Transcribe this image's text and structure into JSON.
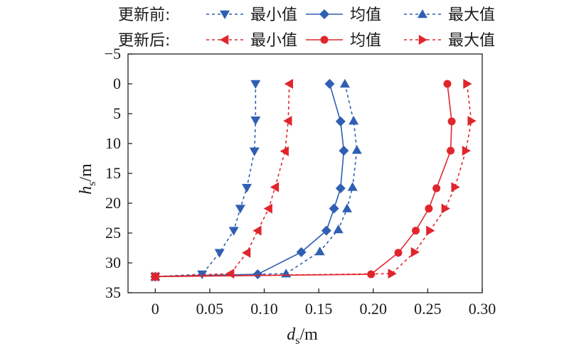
{
  "chart_data": {
    "type": "line",
    "xlabel": {
      "main": "d",
      "sub": "s",
      "unit": "/m"
    },
    "ylabel": {
      "main": "h",
      "sub": "s",
      "unit": "/m"
    },
    "xlim": [
      -0.025,
      0.3
    ],
    "ylim": [
      35,
      -5
    ],
    "y_inverted": true,
    "x_ticks": [
      0,
      0.05,
      0.1,
      0.15,
      0.2,
      0.25,
      0.3
    ],
    "x_tick_labels": [
      "0",
      "0.05",
      "0.10",
      "0.15",
      "0.20",
      "0.25",
      "0.30"
    ],
    "y_ticks": [
      -5,
      0,
      5,
      10,
      15,
      20,
      25,
      30,
      35
    ],
    "y_tick_labels": [
      "−5",
      "0",
      "5",
      "10",
      "15",
      "20",
      "25",
      "30",
      "35"
    ],
    "grid": false,
    "legend": {
      "placement": "top",
      "rows": [
        {
          "label": "更新前:",
          "entries": [
            "最小值",
            "均值",
            "最大值"
          ]
        },
        {
          "label": "更新后:",
          "entries": [
            "最小值",
            "均值",
            "最大值"
          ]
        }
      ]
    },
    "series": [
      {
        "name": "最小值",
        "group": "更新前",
        "color": "#2f5fb3",
        "marker": "triangle-down",
        "dashed": true,
        "points": [
          [
            0.092,
            0
          ],
          [
            0.092,
            6.1
          ],
          [
            0.091,
            11.3
          ],
          [
            0.084,
            17.4
          ],
          [
            0.078,
            20.9
          ],
          [
            0.072,
            24.6
          ],
          [
            0.059,
            28.3
          ],
          [
            0.043,
            31.9
          ],
          [
            0,
            32.3
          ]
        ]
      },
      {
        "name": "均值",
        "group": "更新前",
        "color": "#2f5fb3",
        "marker": "diamond",
        "dashed": false,
        "points": [
          [
            0.16,
            0
          ],
          [
            0.17,
            6.3
          ],
          [
            0.173,
            11.2
          ],
          [
            0.17,
            17.5
          ],
          [
            0.164,
            20.9
          ],
          [
            0.157,
            24.6
          ],
          [
            0.134,
            28.2
          ],
          [
            0.094,
            31.9
          ],
          [
            0,
            32.3
          ]
        ]
      },
      {
        "name": "最大值",
        "group": "更新前",
        "color": "#2f5fb3",
        "marker": "triangle-up",
        "dashed": true,
        "points": [
          [
            0.174,
            0
          ],
          [
            0.182,
            6.2
          ],
          [
            0.185,
            11.1
          ],
          [
            0.181,
            17.3
          ],
          [
            0.176,
            20.9
          ],
          [
            0.168,
            24.4
          ],
          [
            0.151,
            28.1
          ],
          [
            0.12,
            31.8
          ],
          [
            0,
            32.3
          ]
        ]
      },
      {
        "name": "最小值",
        "group": "更新后",
        "color": "#e0262d",
        "marker": "triangle-left",
        "dashed": true,
        "points": [
          [
            0.123,
            0
          ],
          [
            0.122,
            6.2
          ],
          [
            0.119,
            11.3
          ],
          [
            0.11,
            17.3
          ],
          [
            0.104,
            20.9
          ],
          [
            0.094,
            24.6
          ],
          [
            0.084,
            28.3
          ],
          [
            0.069,
            31.8
          ],
          [
            0,
            32.3
          ]
        ]
      },
      {
        "name": "均值",
        "group": "更新后",
        "color": "#e0262d",
        "marker": "circle",
        "dashed": false,
        "points": [
          [
            0.268,
            0
          ],
          [
            0.272,
            6.3
          ],
          [
            0.271,
            11.2
          ],
          [
            0.258,
            17.5
          ],
          [
            0.251,
            20.9
          ],
          [
            0.239,
            24.6
          ],
          [
            0.223,
            28.3
          ],
          [
            0.198,
            31.9
          ],
          [
            0,
            32.3
          ]
        ]
      },
      {
        "name": "最大值",
        "group": "更新后",
        "color": "#e0262d",
        "marker": "triangle-right",
        "dashed": true,
        "points": [
          [
            0.286,
            0
          ],
          [
            0.29,
            6.2
          ],
          [
            0.285,
            11.2
          ],
          [
            0.275,
            17.3
          ],
          [
            0.266,
            20.9
          ],
          [
            0.252,
            24.6
          ],
          [
            0.238,
            28.2
          ],
          [
            0.217,
            31.8
          ],
          [
            0,
            32.3
          ]
        ]
      }
    ]
  }
}
